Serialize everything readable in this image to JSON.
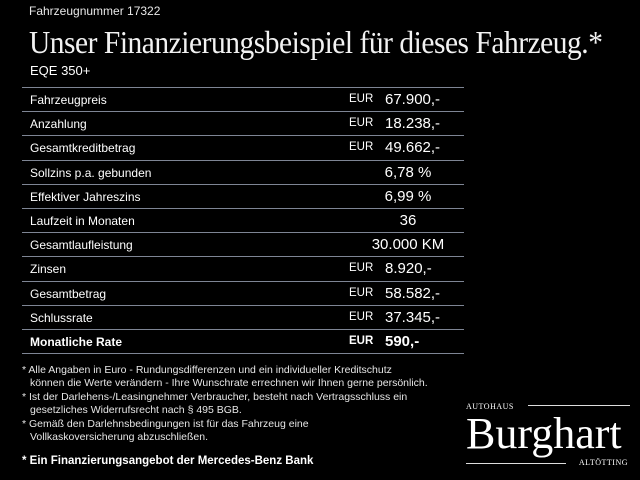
{
  "header": {
    "vehicle_number": "Fahrzeugnummer 17322",
    "title": "Unser Finanzierungsbeispiel für dieses Fahrzeug.*",
    "model": "EQE 350+"
  },
  "rows": [
    {
      "label": "Fahrzeugpreis",
      "currency": "EUR",
      "value": "67.900,-"
    },
    {
      "label": "Anzahlung",
      "currency": "EUR",
      "value": "18.238,-"
    },
    {
      "label": "Gesamtkreditbetrag",
      "currency": "EUR",
      "value": "49.662,-"
    },
    {
      "label": "Sollzins p.a. gebunden",
      "currency": "",
      "value": "6,78 %"
    },
    {
      "label": "Effektiver Jahreszins",
      "currency": "",
      "value": "6,99 %"
    },
    {
      "label": "Laufzeit in Monaten",
      "currency": "",
      "value": "36"
    },
    {
      "label": "Gesamtlaufleistung",
      "currency": "",
      "value": "30.000 KM"
    },
    {
      "label": "Zinsen",
      "currency": "EUR",
      "value": "8.920,-"
    },
    {
      "label": "Gesamtbetrag",
      "currency": "EUR",
      "value": "58.582,-"
    },
    {
      "label": "Schlussrate",
      "currency": "EUR",
      "value": "37.345,-"
    },
    {
      "label": "Monatliche Rate",
      "currency": "EUR",
      "value": "590,-"
    }
  ],
  "notes": [
    "* Alle Angaben in Euro - Rundungsdifferenzen und ein individueller Kreditschutz",
    "  können die Werte verändern - Ihre Wunschrate errechnen wir Ihnen gerne persönlich.",
    "* Ist der Darlehens-/Leasingnehmer Verbraucher, besteht nach Vertragsschluss ein",
    "  gesetzliches Widerrufsrecht nach § 495 BGB.",
    "* Gemäß den Darlehnsbedingungen ist für das Fahrzeug eine",
    "  Vollkaskoversicherung abzuschließen."
  ],
  "bank_note": "* Ein Finanzierungsangebot der Mercedes-Benz Bank",
  "logo": {
    "top": "Autohaus",
    "name": "Burghart",
    "bottom": "Altötting"
  }
}
